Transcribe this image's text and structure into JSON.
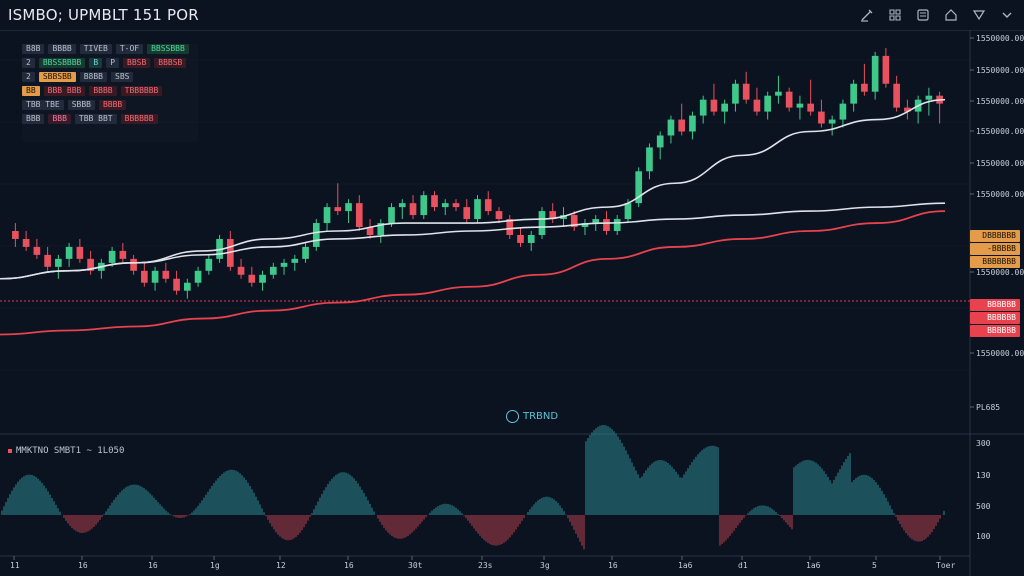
{
  "header": {
    "title": "ISMBO; UPMBLT 151 POR",
    "tools": [
      "pen-icon",
      "grid-icon",
      "save-icon",
      "home-icon",
      "filter-icon",
      "collapse-icon"
    ]
  },
  "info_panel": {
    "rows": [
      [
        {
          "t": "B8B",
          "c": "gray"
        },
        {
          "t": "BBBB",
          "c": "gray"
        },
        {
          "t": "TIVEB",
          "c": "gray"
        },
        {
          "t": "T-OF",
          "c": "gray"
        },
        {
          "t": "BBSSBBB",
          "c": "green"
        }
      ],
      [
        {
          "t": "2",
          "c": "gray"
        },
        {
          "t": "BBSSBBBB",
          "c": "green"
        },
        {
          "t": "B",
          "c": "teal"
        },
        {
          "t": "P",
          "c": "gray"
        },
        {
          "t": "BBSB",
          "c": "red"
        },
        {
          "t": "BBBSB",
          "c": "red"
        }
      ],
      [
        {
          "t": "2",
          "c": "gray"
        },
        {
          "t": "SBBSBB",
          "c": "orange"
        },
        {
          "t": "B8BB",
          "c": "gray"
        },
        {
          "t": "SBS",
          "c": "gray"
        }
      ],
      [
        {
          "t": "BB",
          "c": "orange"
        },
        {
          "t": "BBB BBB",
          "c": "red"
        },
        {
          "t": "BBBB",
          "c": "red"
        },
        {
          "t": "TBBBBBB",
          "c": "red"
        }
      ],
      [
        {
          "t": "TBB TBE",
          "c": "gray"
        },
        {
          "t": "SBBB",
          "c": "gray"
        },
        {
          "t": "BBBB",
          "c": "red"
        }
      ],
      [
        {
          "t": "BBB",
          "c": "gray"
        },
        {
          "t": "BBB",
          "c": "pink"
        },
        {
          "t": "TBB BBT",
          "c": "gray"
        },
        {
          "t": "BBBBBB",
          "c": "red"
        }
      ]
    ]
  },
  "trend_button": "TRBND",
  "oscillator_label": "MMKTNO SMBT1 ~ 1L050",
  "price_axis": {
    "ticks": [
      {
        "label": "1550000.00",
        "y": 38
      },
      {
        "label": "1550000.00",
        "y": 70
      },
      {
        "label": "1550000.00",
        "y": 101
      },
      {
        "label": "1550000.00",
        "y": 131
      },
      {
        "label": "1550000.00",
        "y": 163
      },
      {
        "label": "1550000.00",
        "y": 194
      },
      {
        "label": "1550000.00",
        "y": 272
      },
      {
        "label": "1550000.00",
        "y": 353
      },
      {
        "label": "PL685",
        "y": 407
      }
    ],
    "tags": [
      {
        "label": "DBBBBBB",
        "bg": "#e49b4a",
        "fg": "#1a1206",
        "y": 230
      },
      {
        "label": "-BBBBB",
        "bg": "#e49b4a",
        "fg": "#1a1206",
        "y": 243
      },
      {
        "label": "BBBBBBB",
        "bg": "#e49b4a",
        "fg": "#1a1206",
        "y": 256
      },
      {
        "label": "BBBBBB",
        "bg": "#e8424f",
        "fg": "#ffffff",
        "y": 299
      },
      {
        "label": "BBBBBB",
        "bg": "#e8424f",
        "fg": "#ffffff",
        "y": 312
      },
      {
        "label": "BBBBBB",
        "bg": "#e8424f",
        "fg": "#ffffff",
        "y": 325
      }
    ]
  },
  "osc_axis": [
    "300",
    "130",
    "500",
    "100"
  ],
  "time_axis": [
    "11",
    "16",
    "16",
    "1g",
    "12",
    "16",
    "30t",
    "23s",
    "3g",
    "16",
    "1a6",
    "d1",
    "1a6",
    "5",
    "Toer"
  ],
  "colors": {
    "up": "#3ec98b",
    "down": "#e8515d",
    "ma_slow": "#e8424f",
    "ma_mid": "#dfe3ea",
    "ma_fast": "#dfe3ea",
    "bg": "#0b1220"
  },
  "chart_data": {
    "type": "candlestick",
    "candles": [
      [
        0.5,
        0.52,
        0.46,
        0.48
      ],
      [
        0.48,
        0.5,
        0.45,
        0.46
      ],
      [
        0.46,
        0.48,
        0.43,
        0.44
      ],
      [
        0.44,
        0.46,
        0.4,
        0.41
      ],
      [
        0.41,
        0.44,
        0.38,
        0.43
      ],
      [
        0.43,
        0.47,
        0.41,
        0.46
      ],
      [
        0.46,
        0.48,
        0.42,
        0.43
      ],
      [
        0.43,
        0.45,
        0.39,
        0.4
      ],
      [
        0.4,
        0.43,
        0.38,
        0.42
      ],
      [
        0.42,
        0.46,
        0.41,
        0.45
      ],
      [
        0.45,
        0.47,
        0.42,
        0.43
      ],
      [
        0.43,
        0.44,
        0.39,
        0.4
      ],
      [
        0.4,
        0.42,
        0.36,
        0.37
      ],
      [
        0.37,
        0.41,
        0.35,
        0.4
      ],
      [
        0.4,
        0.42,
        0.37,
        0.38
      ],
      [
        0.38,
        0.4,
        0.34,
        0.35
      ],
      [
        0.35,
        0.38,
        0.33,
        0.37
      ],
      [
        0.37,
        0.41,
        0.36,
        0.4
      ],
      [
        0.4,
        0.44,
        0.39,
        0.43
      ],
      [
        0.43,
        0.49,
        0.42,
        0.48
      ],
      [
        0.48,
        0.5,
        0.4,
        0.41
      ],
      [
        0.41,
        0.43,
        0.38,
        0.39
      ],
      [
        0.39,
        0.41,
        0.36,
        0.37
      ],
      [
        0.37,
        0.4,
        0.35,
        0.39
      ],
      [
        0.39,
        0.42,
        0.38,
        0.41
      ],
      [
        0.41,
        0.43,
        0.39,
        0.42
      ],
      [
        0.42,
        0.44,
        0.4,
        0.43
      ],
      [
        0.43,
        0.47,
        0.42,
        0.46
      ],
      [
        0.46,
        0.53,
        0.45,
        0.52
      ],
      [
        0.52,
        0.57,
        0.5,
        0.56
      ],
      [
        0.56,
        0.62,
        0.54,
        0.55
      ],
      [
        0.55,
        0.58,
        0.52,
        0.57
      ],
      [
        0.57,
        0.59,
        0.5,
        0.51
      ],
      [
        0.51,
        0.53,
        0.48,
        0.49
      ],
      [
        0.49,
        0.53,
        0.47,
        0.52
      ],
      [
        0.52,
        0.57,
        0.51,
        0.56
      ],
      [
        0.56,
        0.58,
        0.53,
        0.57
      ],
      [
        0.57,
        0.59,
        0.53,
        0.54
      ],
      [
        0.54,
        0.6,
        0.53,
        0.59
      ],
      [
        0.59,
        0.6,
        0.55,
        0.56
      ],
      [
        0.56,
        0.58,
        0.54,
        0.57
      ],
      [
        0.57,
        0.58,
        0.55,
        0.56
      ],
      [
        0.56,
        0.58,
        0.52,
        0.53
      ],
      [
        0.53,
        0.59,
        0.52,
        0.58
      ],
      [
        0.58,
        0.6,
        0.54,
        0.55
      ],
      [
        0.55,
        0.56,
        0.52,
        0.53
      ],
      [
        0.53,
        0.54,
        0.48,
        0.49
      ],
      [
        0.49,
        0.51,
        0.46,
        0.47
      ],
      [
        0.47,
        0.5,
        0.45,
        0.49
      ],
      [
        0.49,
        0.56,
        0.48,
        0.55
      ],
      [
        0.55,
        0.57,
        0.52,
        0.53
      ],
      [
        0.53,
        0.56,
        0.51,
        0.54
      ],
      [
        0.54,
        0.55,
        0.5,
        0.51
      ],
      [
        0.51,
        0.53,
        0.49,
        0.52
      ],
      [
        0.52,
        0.54,
        0.5,
        0.53
      ],
      [
        0.53,
        0.55,
        0.49,
        0.5
      ],
      [
        0.5,
        0.54,
        0.49,
        0.53
      ],
      [
        0.53,
        0.58,
        0.52,
        0.57
      ],
      [
        0.57,
        0.66,
        0.56,
        0.65
      ],
      [
        0.65,
        0.72,
        0.63,
        0.71
      ],
      [
        0.71,
        0.75,
        0.68,
        0.74
      ],
      [
        0.74,
        0.79,
        0.72,
        0.78
      ],
      [
        0.78,
        0.82,
        0.74,
        0.75
      ],
      [
        0.75,
        0.8,
        0.73,
        0.79
      ],
      [
        0.79,
        0.84,
        0.77,
        0.83
      ],
      [
        0.83,
        0.87,
        0.79,
        0.8
      ],
      [
        0.8,
        0.83,
        0.77,
        0.82
      ],
      [
        0.82,
        0.88,
        0.8,
        0.87
      ],
      [
        0.87,
        0.9,
        0.82,
        0.83
      ],
      [
        0.83,
        0.86,
        0.79,
        0.8
      ],
      [
        0.8,
        0.85,
        0.78,
        0.84
      ],
      [
        0.84,
        0.89,
        0.82,
        0.85
      ],
      [
        0.85,
        0.86,
        0.8,
        0.81
      ],
      [
        0.81,
        0.84,
        0.78,
        0.82
      ],
      [
        0.82,
        0.88,
        0.79,
        0.8
      ],
      [
        0.8,
        0.83,
        0.76,
        0.77
      ],
      [
        0.77,
        0.79,
        0.74,
        0.78
      ],
      [
        0.78,
        0.83,
        0.76,
        0.82
      ],
      [
        0.82,
        0.88,
        0.8,
        0.87
      ],
      [
        0.87,
        0.92,
        0.84,
        0.85
      ],
      [
        0.85,
        0.95,
        0.83,
        0.94
      ],
      [
        0.94,
        0.96,
        0.86,
        0.87
      ],
      [
        0.87,
        0.89,
        0.8,
        0.81
      ],
      [
        0.81,
        0.83,
        0.78,
        0.8
      ],
      [
        0.8,
        0.84,
        0.77,
        0.83
      ],
      [
        0.83,
        0.86,
        0.79,
        0.84
      ],
      [
        0.84,
        0.85,
        0.77,
        0.82
      ]
    ],
    "ma_slow": [
      0.24,
      0.25,
      0.26,
      0.28,
      0.3,
      0.32,
      0.34,
      0.36,
      0.39,
      0.43,
      0.46,
      0.48,
      0.5,
      0.52,
      0.55
    ],
    "ma_mid": [
      0.38,
      0.4,
      0.42,
      0.44,
      0.46,
      0.48,
      0.49,
      0.5,
      0.51,
      0.52,
      0.53,
      0.54,
      0.55,
      0.56,
      0.57
    ],
    "ma_fast": [
      0.38,
      0.4,
      0.42,
      0.45,
      0.48,
      0.5,
      0.52,
      0.52,
      0.53,
      0.56,
      0.62,
      0.69,
      0.75,
      0.78,
      0.83
    ],
    "oscillator_points": 18
  }
}
